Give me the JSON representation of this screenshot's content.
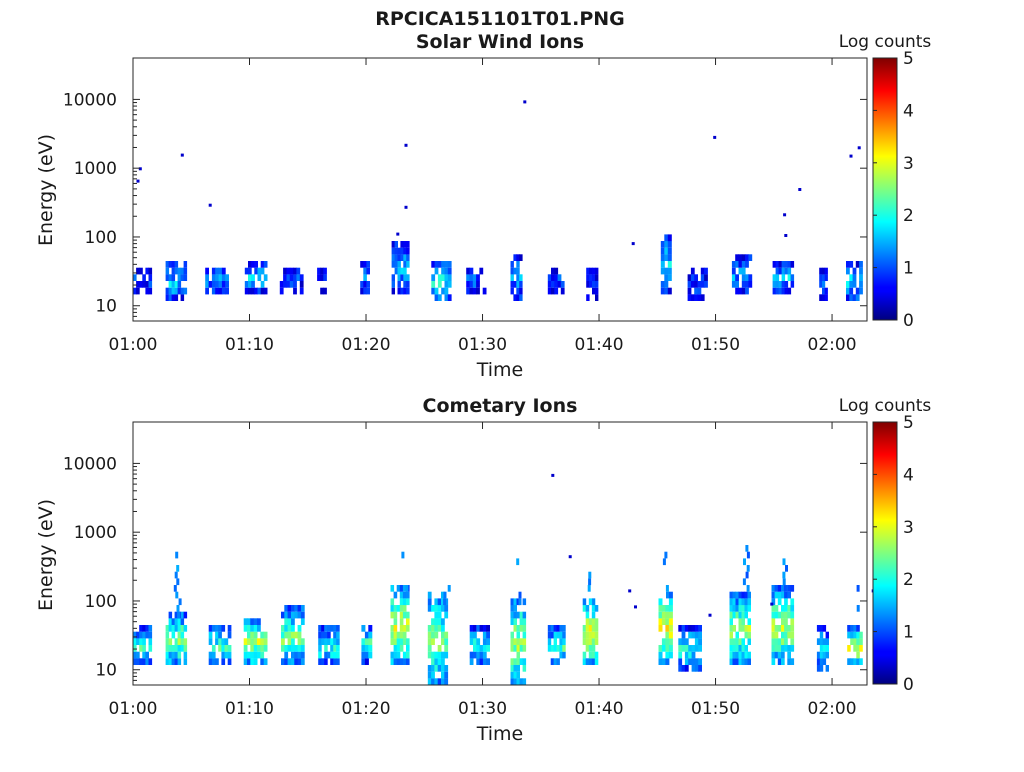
{
  "figure": {
    "main_title": "RPCICA151101T01.PNG"
  },
  "chart_data": [
    {
      "type": "heatmap",
      "title": "Solar Wind Ions",
      "xlabel": "Time",
      "ylabel": "Energy (eV)",
      "xlim": [
        "01:00",
        "02:03"
      ],
      "ylim": [
        6,
        40000
      ],
      "yscale": "log",
      "x_ticks": [
        "01:00",
        "01:10",
        "01:20",
        "01:30",
        "01:40",
        "01:50",
        "02:00"
      ],
      "y_ticks": [
        {
          "value": 10,
          "label": "10"
        },
        {
          "value": 100,
          "label": "100"
        },
        {
          "value": 1000,
          "label": "1000"
        },
        {
          "value": 10000,
          "label": "10000"
        }
      ],
      "colorbar": {
        "label": "Log counts",
        "range": [
          0,
          5
        ],
        "ticks": [
          "0",
          "1",
          "2",
          "3",
          "4",
          "5"
        ],
        "colormap": "jet"
      },
      "grid": false,
      "clusters": [
        {
          "t": 0.0,
          "dur": 1.6,
          "emin": 17,
          "emax": 32,
          "level": 1.0
        },
        {
          "t": 2.8,
          "dur": 1.8,
          "emin": 12,
          "emax": 40,
          "level": 1.6
        },
        {
          "t": 6.2,
          "dur": 2.0,
          "emin": 16,
          "emax": 35,
          "level": 1.4
        },
        {
          "t": 9.6,
          "dur": 1.9,
          "emin": 17,
          "emax": 40,
          "level": 1.6
        },
        {
          "t": 12.6,
          "dur": 2.0,
          "emin": 17,
          "emax": 35,
          "level": 1.0
        },
        {
          "t": 15.8,
          "dur": 0.8,
          "emin": 17,
          "emax": 33,
          "level": 0.9
        },
        {
          "t": 19.5,
          "dur": 0.8,
          "emin": 17,
          "emax": 40,
          "level": 1.3
        },
        {
          "t": 22.2,
          "dur": 1.5,
          "emin": 17,
          "emax": 75,
          "level": 1.7
        },
        {
          "t": 25.6,
          "dur": 1.7,
          "emin": 12,
          "emax": 40,
          "level": 1.9
        },
        {
          "t": 28.6,
          "dur": 1.7,
          "emin": 17,
          "emax": 32,
          "level": 1.1
        },
        {
          "t": 32.4,
          "dur": 1.0,
          "emin": 12,
          "emax": 52,
          "level": 1.4
        },
        {
          "t": 35.6,
          "dur": 1.4,
          "emin": 17,
          "emax": 32,
          "level": 1.0
        },
        {
          "t": 38.9,
          "dur": 1.0,
          "emin": 12,
          "emax": 32,
          "level": 0.9
        },
        {
          "t": 45.3,
          "dur": 0.9,
          "emin": 17,
          "emax": 100,
          "level": 1.7
        },
        {
          "t": 47.6,
          "dur": 1.7,
          "emin": 12,
          "emax": 32,
          "level": 0.9
        },
        {
          "t": 51.4,
          "dur": 1.7,
          "emin": 16,
          "emax": 50,
          "level": 1.4
        },
        {
          "t": 54.9,
          "dur": 1.8,
          "emin": 17,
          "emax": 40,
          "level": 1.6
        },
        {
          "t": 58.9,
          "dur": 0.7,
          "emin": 14,
          "emax": 32,
          "level": 0.9
        },
        {
          "t": 61.2,
          "dur": 1.4,
          "emin": 12,
          "emax": 40,
          "level": 1.7
        }
      ],
      "dots": [
        {
          "t": 0.3,
          "e": 650
        },
        {
          "t": 0.5,
          "e": 980
        },
        {
          "t": 4.1,
          "e": 1550
        },
        {
          "t": 6.5,
          "e": 290
        },
        {
          "t": 23.3,
          "e": 2150
        },
        {
          "t": 23.3,
          "e": 270
        },
        {
          "t": 33.5,
          "e": 9200
        },
        {
          "t": 42.8,
          "e": 80
        },
        {
          "t": 49.8,
          "e": 2800
        },
        {
          "t": 57.1,
          "e": 490
        },
        {
          "t": 55.8,
          "e": 210
        },
        {
          "t": 55.9,
          "e": 105
        },
        {
          "t": 61.5,
          "e": 1500
        },
        {
          "t": 62.2,
          "e": 1980
        },
        {
          "t": 22.6,
          "e": 110
        }
      ]
    },
    {
      "type": "heatmap",
      "title": "Cometary Ions",
      "xlabel": "Time",
      "ylabel": "Energy (eV)",
      "xlim": [
        "01:00",
        "02:03"
      ],
      "ylim": [
        6,
        40000
      ],
      "yscale": "log",
      "x_ticks": [
        "01:00",
        "01:10",
        "01:20",
        "01:30",
        "01:40",
        "01:50",
        "02:00"
      ],
      "y_ticks": [
        {
          "value": 10,
          "label": "10"
        },
        {
          "value": 100,
          "label": "100"
        },
        {
          "value": 1000,
          "label": "1000"
        },
        {
          "value": 10000,
          "label": "10000"
        }
      ],
      "colorbar": {
        "label": "Log counts",
        "range": [
          0,
          5
        ],
        "ticks": [
          "0",
          "1",
          "2",
          "3",
          "4",
          "5"
        ],
        "colormap": "jet"
      },
      "grid": false,
      "clusters": [
        {
          "t": 0.0,
          "dur": 1.6,
          "emin": 12,
          "emax": 38,
          "level": 2.2
        },
        {
          "t": 2.8,
          "dur": 1.8,
          "emin": 12,
          "emax": 60,
          "level": 2.6
        },
        {
          "t": 6.5,
          "dur": 1.9,
          "emin": 12,
          "emax": 38,
          "level": 2.3
        },
        {
          "t": 9.5,
          "dur": 2.0,
          "emin": 12,
          "emax": 55,
          "level": 2.8
        },
        {
          "t": 12.7,
          "dur": 2.0,
          "emin": 12,
          "emax": 70,
          "level": 2.5
        },
        {
          "t": 15.9,
          "dur": 1.8,
          "emin": 12,
          "emax": 38,
          "level": 2.0
        },
        {
          "t": 19.6,
          "dur": 0.9,
          "emin": 14,
          "emax": 40,
          "level": 2.2
        },
        {
          "t": 22.1,
          "dur": 1.6,
          "emin": 12,
          "emax": 150,
          "level": 2.9
        },
        {
          "t": 25.3,
          "dur": 1.7,
          "emin": 6,
          "emax": 120,
          "level": 2.5
        },
        {
          "t": 28.9,
          "dur": 1.7,
          "emin": 12,
          "emax": 38,
          "level": 2.0
        },
        {
          "t": 32.4,
          "dur": 1.3,
          "emin": 6,
          "emax": 100,
          "level": 2.7
        },
        {
          "t": 35.6,
          "dur": 1.5,
          "emin": 12,
          "emax": 38,
          "level": 2.2
        },
        {
          "t": 38.6,
          "dur": 1.3,
          "emin": 12,
          "emax": 100,
          "level": 3.0
        },
        {
          "t": 45.1,
          "dur": 1.2,
          "emin": 14,
          "emax": 120,
          "level": 3.1
        },
        {
          "t": 46.8,
          "dur": 2.0,
          "emin": 10,
          "emax": 38,
          "level": 2.0
        },
        {
          "t": 51.2,
          "dur": 1.8,
          "emin": 12,
          "emax": 120,
          "level": 2.6
        },
        {
          "t": 54.8,
          "dur": 1.9,
          "emin": 12,
          "emax": 140,
          "level": 2.8
        },
        {
          "t": 58.7,
          "dur": 1.0,
          "emin": 10,
          "emax": 38,
          "level": 1.8
        },
        {
          "t": 61.3,
          "dur": 1.3,
          "emin": 12,
          "emax": 38,
          "level": 3.1
        }
      ],
      "streaks": [
        {
          "t": 3.7,
          "emin": 60,
          "emax": 500,
          "level": 1.0
        },
        {
          "t": 23.2,
          "emin": 150,
          "emax": 720,
          "level": 1.0
        },
        {
          "t": 26.8,
          "emin": 90,
          "emax": 200,
          "level": 1.0
        },
        {
          "t": 33.0,
          "emin": 100,
          "emax": 480,
          "level": 1.0
        },
        {
          "t": 39.2,
          "emin": 100,
          "emax": 290,
          "level": 1.0
        },
        {
          "t": 45.6,
          "emin": 120,
          "emax": 450,
          "level": 1.0
        },
        {
          "t": 52.5,
          "emin": 120,
          "emax": 600,
          "level": 1.0
        },
        {
          "t": 55.8,
          "emin": 140,
          "emax": 400,
          "level": 1.0
        },
        {
          "t": 62.2,
          "emin": 80,
          "emax": 220,
          "level": 1.0
        }
      ],
      "dots": [
        {
          "t": 35.9,
          "e": 6700
        },
        {
          "t": 37.4,
          "e": 440
        },
        {
          "t": 42.5,
          "e": 140
        },
        {
          "t": 43.0,
          "e": 82
        },
        {
          "t": 49.4,
          "e": 62
        },
        {
          "t": 63.4,
          "e": 140
        },
        {
          "t": 54.7,
          "e": 90
        }
      ]
    }
  ]
}
